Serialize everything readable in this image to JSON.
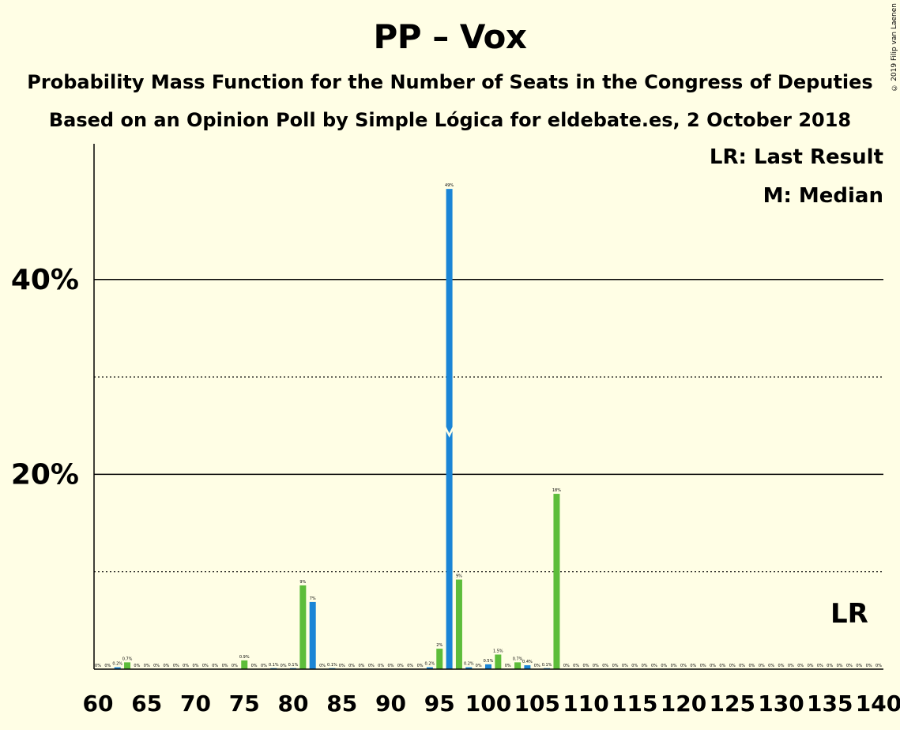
{
  "header": {
    "title": "PP – Vox",
    "subtitle1": "Probability Mass Function for the Number of Seats in the Congress of Deputies",
    "subtitle2": "Based on an Opinion Poll by Simple Lógica for eldebate.es, 2 October 2018",
    "copyright": "© 2019 Filip van Laenen"
  },
  "legend": {
    "lr": "LR: Last Result",
    "median": "M: Median"
  },
  "colors": {
    "background": "#FFFEE5",
    "green": "#5DBD3A",
    "blue": "#1A85D6"
  },
  "chart_data": {
    "type": "bar",
    "title": "PP – Vox",
    "xlim": [
      60,
      140
    ],
    "ylim": [
      0,
      54
    ],
    "y_ticks": [
      {
        "value": 20,
        "label": "20%"
      },
      {
        "value": 40,
        "label": "40%"
      }
    ],
    "y_dotted": [
      10,
      30
    ],
    "y_solid": [
      20,
      40
    ],
    "x_ticks": [
      "60",
      "65",
      "70",
      "75",
      "80",
      "85",
      "90",
      "95",
      "100",
      "105",
      "110",
      "115",
      "120",
      "125",
      "130",
      "135",
      "140"
    ],
    "median_seat": 96,
    "median_level": 24,
    "last_result_seat": 137,
    "last_result_label": "LR",
    "bars": [
      {
        "x": 60,
        "value": 0,
        "label": "0%"
      },
      {
        "x": 61,
        "value": 0,
        "label": "0%"
      },
      {
        "x": 62,
        "value": 0.2,
        "label": "0.2%"
      },
      {
        "x": 63,
        "value": 0.7,
        "label": "0.7%"
      },
      {
        "x": 64,
        "value": 0,
        "label": "0%"
      },
      {
        "x": 65,
        "value": 0,
        "label": "0%"
      },
      {
        "x": 66,
        "value": 0,
        "label": "0%"
      },
      {
        "x": 67,
        "value": 0,
        "label": "0%"
      },
      {
        "x": 68,
        "value": 0,
        "label": "0%"
      },
      {
        "x": 69,
        "value": 0,
        "label": "0%"
      },
      {
        "x": 70,
        "value": 0,
        "label": "0%"
      },
      {
        "x": 71,
        "value": 0,
        "label": "0%"
      },
      {
        "x": 72,
        "value": 0,
        "label": "0%"
      },
      {
        "x": 73,
        "value": 0,
        "label": "0%"
      },
      {
        "x": 74,
        "value": 0,
        "label": "0%"
      },
      {
        "x": 75,
        "value": 0.9,
        "label": "0.9%"
      },
      {
        "x": 76,
        "value": 0,
        "label": "0%"
      },
      {
        "x": 77,
        "value": 0,
        "label": "0%"
      },
      {
        "x": 78,
        "value": 0.1,
        "label": "0.1%"
      },
      {
        "x": 79,
        "value": 0,
        "label": "0%"
      },
      {
        "x": 80,
        "value": 0.1,
        "label": "0.1%"
      },
      {
        "x": 81,
        "value": 8.6,
        "label": "9%"
      },
      {
        "x": 82,
        "value": 6.9,
        "label": "7%"
      },
      {
        "x": 83,
        "value": 0,
        "label": "0%"
      },
      {
        "x": 84,
        "value": 0.1,
        "label": "0.1%"
      },
      {
        "x": 85,
        "value": 0,
        "label": "0%"
      },
      {
        "x": 86,
        "value": 0,
        "label": "0%"
      },
      {
        "x": 87,
        "value": 0,
        "label": "0%"
      },
      {
        "x": 88,
        "value": 0,
        "label": "0%"
      },
      {
        "x": 89,
        "value": 0,
        "label": "0%"
      },
      {
        "x": 90,
        "value": 0,
        "label": "0%"
      },
      {
        "x": 91,
        "value": 0,
        "label": "0%"
      },
      {
        "x": 92,
        "value": 0,
        "label": "0%"
      },
      {
        "x": 93,
        "value": 0,
        "label": "0%"
      },
      {
        "x": 94,
        "value": 0.2,
        "label": "0.2%"
      },
      {
        "x": 95,
        "value": 2.1,
        "label": "2%"
      },
      {
        "x": 96,
        "value": 49.3,
        "label": "49%"
      },
      {
        "x": 97,
        "value": 9.2,
        "label": "9%"
      },
      {
        "x": 98,
        "value": 0.2,
        "label": "0.2%"
      },
      {
        "x": 99,
        "value": 0,
        "label": "0%"
      },
      {
        "x": 100,
        "value": 0.5,
        "label": "0.5%"
      },
      {
        "x": 101,
        "value": 1.5,
        "label": "1.5%"
      },
      {
        "x": 102,
        "value": 0,
        "label": "0%"
      },
      {
        "x": 103,
        "value": 0.7,
        "label": "0.7%"
      },
      {
        "x": 104,
        "value": 0.4,
        "label": "0.4%"
      },
      {
        "x": 105,
        "value": 0,
        "label": "0%"
      },
      {
        "x": 106,
        "value": 0.1,
        "label": "0.1%"
      },
      {
        "x": 107,
        "value": 18,
        "label": "18%"
      },
      {
        "x": 108,
        "value": 0,
        "label": "0%"
      },
      {
        "x": 109,
        "value": 0,
        "label": "0%"
      },
      {
        "x": 110,
        "value": 0,
        "label": "0%"
      },
      {
        "x": 111,
        "value": 0,
        "label": "0%"
      },
      {
        "x": 112,
        "value": 0,
        "label": "0%"
      },
      {
        "x": 113,
        "value": 0,
        "label": "0%"
      },
      {
        "x": 114,
        "value": 0,
        "label": "0%"
      },
      {
        "x": 115,
        "value": 0,
        "label": "0%"
      },
      {
        "x": 116,
        "value": 0,
        "label": "0%"
      },
      {
        "x": 117,
        "value": 0,
        "label": "0%"
      },
      {
        "x": 118,
        "value": 0,
        "label": "0%"
      },
      {
        "x": 119,
        "value": 0,
        "label": "0%"
      },
      {
        "x": 120,
        "value": 0,
        "label": "0%"
      },
      {
        "x": 121,
        "value": 0,
        "label": "0%"
      },
      {
        "x": 122,
        "value": 0,
        "label": "0%"
      },
      {
        "x": 123,
        "value": 0,
        "label": "0%"
      },
      {
        "x": 124,
        "value": 0,
        "label": "0%"
      },
      {
        "x": 125,
        "value": 0,
        "label": "0%"
      },
      {
        "x": 126,
        "value": 0,
        "label": "0%"
      },
      {
        "x": 127,
        "value": 0,
        "label": "0%"
      },
      {
        "x": 128,
        "value": 0,
        "label": "0%"
      },
      {
        "x": 129,
        "value": 0,
        "label": "0%"
      },
      {
        "x": 130,
        "value": 0,
        "label": "0%"
      },
      {
        "x": 131,
        "value": 0,
        "label": "0%"
      },
      {
        "x": 132,
        "value": 0,
        "label": "0%"
      },
      {
        "x": 133,
        "value": 0,
        "label": "0%"
      },
      {
        "x": 134,
        "value": 0,
        "label": "0%"
      },
      {
        "x": 135,
        "value": 0,
        "label": "0%"
      },
      {
        "x": 136,
        "value": 0,
        "label": "0%"
      },
      {
        "x": 137,
        "value": 0,
        "label": "0%"
      },
      {
        "x": 138,
        "value": 0,
        "label": "0%"
      },
      {
        "x": 139,
        "value": 0,
        "label": "0%"
      },
      {
        "x": 140,
        "value": 0,
        "label": "0%"
      }
    ]
  }
}
